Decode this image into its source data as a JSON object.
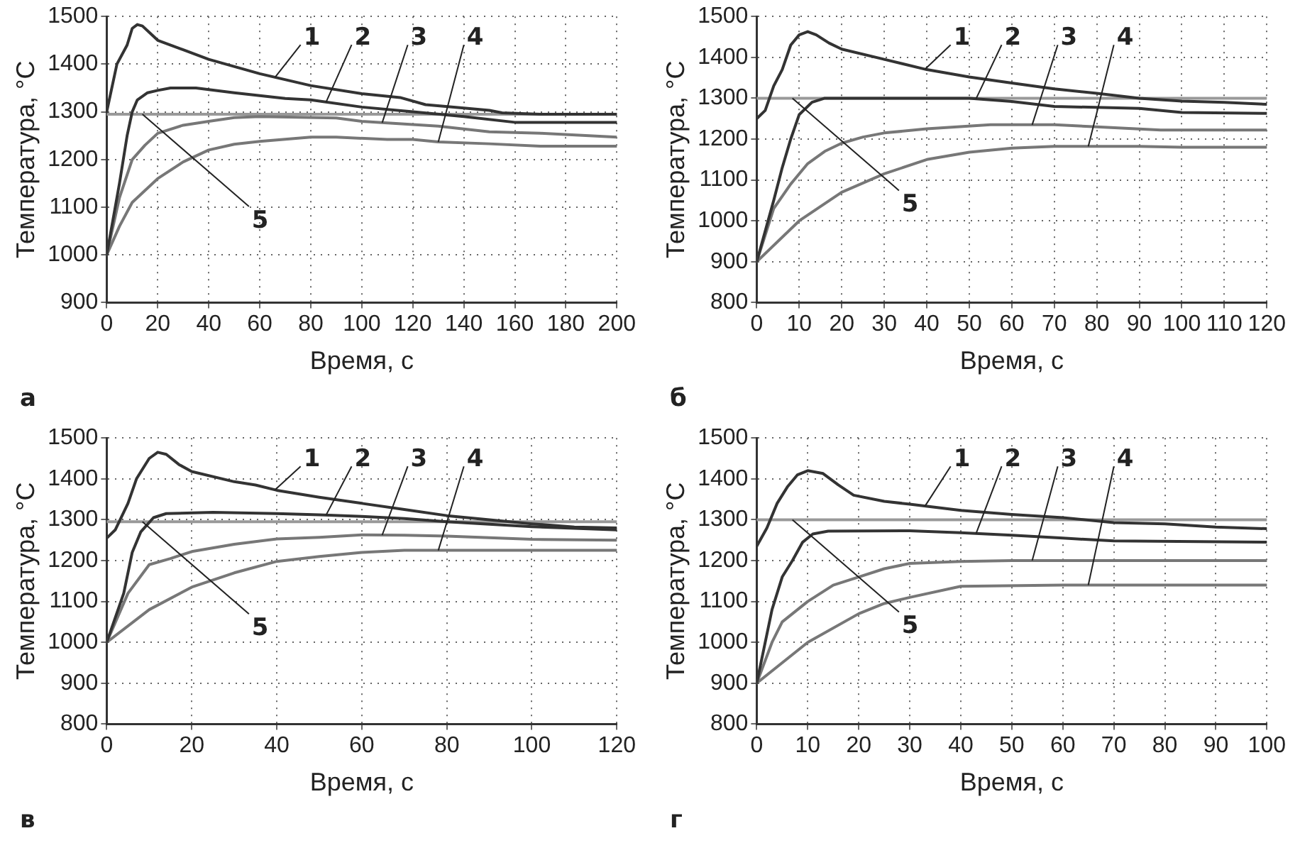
{
  "chart_data": [
    {
      "type": "line",
      "title": "а",
      "xlabel": "Время, с",
      "ylabel": "Температура, °C",
      "xlim": [
        0,
        200
      ],
      "xticks": [
        0,
        20,
        40,
        60,
        80,
        100,
        120,
        140,
        160,
        180,
        200
      ],
      "ylim": [
        900,
        1500
      ],
      "yticks": [
        900,
        1000,
        1100,
        1200,
        1300,
        1400,
        1500
      ],
      "grid": true,
      "legend": false,
      "marker": "none",
      "line_style": "solid",
      "series": [
        {
          "name": "1",
          "color": "#333333",
          "x": [
            0,
            4,
            8,
            10,
            12,
            14,
            18,
            20,
            30,
            40,
            60,
            80,
            100,
            115,
            125,
            140,
            150,
            155,
            170,
            200
          ],
          "values": [
            1300,
            1400,
            1440,
            1475,
            1483,
            1480,
            1460,
            1450,
            1430,
            1410,
            1380,
            1355,
            1338,
            1330,
            1315,
            1308,
            1303,
            1298,
            1295,
            1295
          ]
        },
        {
          "name": "2",
          "color": "#333333",
          "x": [
            0,
            5,
            8,
            10,
            12,
            16,
            20,
            25,
            35,
            50,
            70,
            80,
            100,
            120,
            140,
            160,
            200
          ],
          "values": [
            1000,
            1150,
            1250,
            1300,
            1325,
            1340,
            1345,
            1350,
            1350,
            1340,
            1328,
            1325,
            1310,
            1300,
            1290,
            1278,
            1278
          ]
        },
        {
          "name": "3",
          "color": "#777777",
          "x": [
            0,
            5,
            10,
            15,
            20,
            30,
            40,
            50,
            60,
            90,
            100,
            130,
            150,
            170,
            200
          ],
          "values": [
            1000,
            1120,
            1200,
            1230,
            1255,
            1272,
            1280,
            1288,
            1290,
            1287,
            1280,
            1270,
            1258,
            1255,
            1247
          ]
        },
        {
          "name": "4",
          "color": "#777777",
          "x": [
            0,
            5,
            10,
            20,
            30,
            40,
            50,
            60,
            80,
            90,
            110,
            120,
            130,
            150,
            170,
            200
          ],
          "values": [
            1000,
            1060,
            1110,
            1160,
            1195,
            1220,
            1232,
            1238,
            1247,
            1247,
            1242,
            1242,
            1237,
            1233,
            1228,
            1228
          ]
        },
        {
          "name": "5",
          "color": "#999999",
          "x": [
            0,
            200
          ],
          "values": [
            1295,
            1295
          ]
        }
      ]
    },
    {
      "type": "line",
      "title": "б",
      "xlabel": "Время, с",
      "ylabel": "Температура, °C",
      "xlim": [
        0,
        120
      ],
      "xticks": [
        0,
        10,
        20,
        30,
        40,
        50,
        60,
        70,
        80,
        90,
        100,
        110,
        120
      ],
      "ylim": [
        800,
        1500
      ],
      "yticks": [
        800,
        900,
        1000,
        1100,
        1200,
        1300,
        1400,
        1500
      ],
      "grid": true,
      "legend": false,
      "marker": "none",
      "line_style": "solid",
      "series": [
        {
          "name": "1",
          "color": "#333333",
          "x": [
            0,
            2,
            4,
            6,
            8,
            10,
            12,
            14,
            17,
            20,
            30,
            40,
            50,
            60,
            70,
            80,
            90,
            100,
            110,
            120
          ],
          "values": [
            1250,
            1270,
            1330,
            1370,
            1430,
            1455,
            1463,
            1455,
            1435,
            1420,
            1395,
            1370,
            1352,
            1337,
            1323,
            1312,
            1300,
            1293,
            1290,
            1285
          ]
        },
        {
          "name": "2",
          "color": "#333333",
          "x": [
            0,
            4,
            6,
            8,
            10,
            13,
            16,
            50,
            60,
            70,
            90,
            100,
            120
          ],
          "values": [
            900,
            1050,
            1130,
            1200,
            1260,
            1290,
            1300,
            1300,
            1292,
            1280,
            1275,
            1265,
            1263
          ]
        },
        {
          "name": "3",
          "color": "#777777",
          "x": [
            0,
            4,
            8,
            12,
            16,
            20,
            25,
            30,
            40,
            55,
            70,
            80,
            95,
            120
          ],
          "values": [
            900,
            1030,
            1090,
            1140,
            1170,
            1190,
            1205,
            1215,
            1225,
            1235,
            1235,
            1230,
            1222,
            1222
          ]
        },
        {
          "name": "4",
          "color": "#777777",
          "x": [
            0,
            10,
            20,
            30,
            40,
            50,
            60,
            70,
            90,
            100,
            120
          ],
          "values": [
            900,
            1000,
            1070,
            1115,
            1150,
            1168,
            1178,
            1182,
            1182,
            1180,
            1180
          ]
        },
        {
          "name": "5",
          "color": "#999999",
          "x": [
            0,
            120
          ],
          "values": [
            1300,
            1300
          ]
        }
      ]
    },
    {
      "type": "line",
      "title": "в",
      "xlabel": "Время, с",
      "ylabel": "Температура, °C",
      "xlim": [
        0,
        120
      ],
      "xticks": [
        0,
        20,
        40,
        60,
        80,
        100,
        120
      ],
      "ylim": [
        800,
        1500
      ],
      "yticks": [
        800,
        900,
        1000,
        1100,
        1200,
        1300,
        1400,
        1500
      ],
      "grid": true,
      "legend": false,
      "marker": "none",
      "line_style": "solid",
      "series": [
        {
          "name": "1",
          "color": "#333333",
          "x": [
            0,
            2,
            5,
            7,
            10,
            12,
            14,
            17,
            20,
            30,
            35,
            40,
            50,
            60,
            70,
            80,
            90,
            100,
            110,
            120
          ],
          "values": [
            1255,
            1275,
            1340,
            1400,
            1450,
            1465,
            1460,
            1435,
            1418,
            1393,
            1385,
            1372,
            1355,
            1340,
            1325,
            1310,
            1300,
            1290,
            1282,
            1280
          ]
        },
        {
          "name": "2",
          "color": "#333333",
          "x": [
            0,
            4,
            6,
            8,
            11,
            14,
            25,
            40,
            50,
            60,
            70,
            80,
            100,
            120
          ],
          "values": [
            1000,
            1120,
            1220,
            1270,
            1305,
            1315,
            1318,
            1315,
            1312,
            1308,
            1303,
            1295,
            1283,
            1275
          ]
        },
        {
          "name": "3",
          "color": "#777777",
          "x": [
            0,
            5,
            10,
            15,
            20,
            30,
            40,
            50,
            60,
            70,
            80,
            100,
            120
          ],
          "values": [
            1000,
            1120,
            1190,
            1205,
            1222,
            1240,
            1253,
            1257,
            1263,
            1262,
            1260,
            1252,
            1250
          ]
        },
        {
          "name": "4",
          "color": "#777777",
          "x": [
            0,
            10,
            20,
            30,
            40,
            50,
            60,
            70,
            120
          ],
          "values": [
            1000,
            1080,
            1135,
            1170,
            1198,
            1210,
            1220,
            1225,
            1225
          ]
        },
        {
          "name": "5",
          "color": "#999999",
          "x": [
            0,
            120
          ],
          "values": [
            1295,
            1295
          ]
        }
      ]
    },
    {
      "type": "line",
      "title": "г",
      "xlabel": "Время, с",
      "ylabel": "Температура, °C",
      "xlim": [
        0,
        100
      ],
      "xticks": [
        0,
        10,
        20,
        30,
        40,
        50,
        60,
        70,
        80,
        90,
        100
      ],
      "ylim": [
        800,
        1500
      ],
      "yticks": [
        800,
        900,
        1000,
        1100,
        1200,
        1300,
        1400,
        1500
      ],
      "grid": true,
      "legend": false,
      "marker": "none",
      "line_style": "solid",
      "series": [
        {
          "name": "1",
          "color": "#333333",
          "x": [
            0,
            2,
            4,
            6,
            8,
            10,
            13,
            16,
            19,
            25,
            30,
            40,
            50,
            60,
            70,
            80,
            90,
            100
          ],
          "values": [
            1235,
            1280,
            1340,
            1380,
            1410,
            1420,
            1413,
            1385,
            1360,
            1345,
            1338,
            1323,
            1313,
            1305,
            1293,
            1290,
            1282,
            1278
          ]
        },
        {
          "name": "2",
          "color": "#333333",
          "x": [
            0,
            3,
            5,
            7,
            9,
            11,
            14,
            30,
            40,
            50,
            60,
            70,
            100
          ],
          "values": [
            900,
            1080,
            1160,
            1200,
            1245,
            1265,
            1272,
            1273,
            1268,
            1262,
            1255,
            1248,
            1245
          ]
        },
        {
          "name": "3",
          "color": "#777777",
          "x": [
            0,
            3,
            5,
            8,
            10,
            15,
            20,
            25,
            30,
            40,
            50,
            100
          ],
          "values": [
            900,
            1000,
            1050,
            1080,
            1100,
            1140,
            1160,
            1180,
            1193,
            1198,
            1200,
            1200
          ]
        },
        {
          "name": "4",
          "color": "#777777",
          "x": [
            0,
            10,
            20,
            25,
            30,
            40,
            60,
            100
          ],
          "values": [
            900,
            1000,
            1070,
            1095,
            1110,
            1137,
            1140,
            1140
          ]
        },
        {
          "name": "5",
          "color": "#999999",
          "x": [
            0,
            100
          ],
          "values": [
            1300,
            1300
          ]
        }
      ]
    }
  ]
}
